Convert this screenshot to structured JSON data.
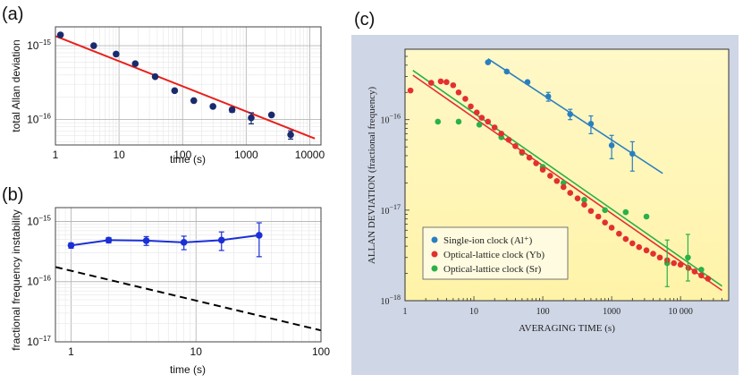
{
  "colors": {
    "fit_red": "#e8201c",
    "navy_point": "#1a2a6e",
    "blue_series": "#1b2fd6",
    "dashed": "#000000",
    "panel_c_bg": "#cfd6e6",
    "panel_c_plot_bg_top": "#fff8c8",
    "panel_c_plot_bg_bottom": "#fff3a8",
    "al_blue": "#2a7fc0",
    "yb_red": "#e23030",
    "sr_green": "#2bb04a"
  },
  "chart_data": [
    {
      "id": "a",
      "panel_label": "(a)",
      "type": "scatter",
      "xscale": "log",
      "yscale": "log",
      "xlim": [
        1,
        15000
      ],
      "ylim": [
        4.5e-17,
        1.8e-15
      ],
      "xlabel": "time (s)",
      "ylabel": "total Allan deviation",
      "xticks": [
        {
          "value": 1,
          "label": "1"
        },
        {
          "value": 10,
          "label": "10"
        },
        {
          "value": 100,
          "label": "100"
        },
        {
          "value": 1000,
          "label": "1000"
        },
        {
          "value": 10000,
          "label": "10000"
        }
      ],
      "yticks": [
        {
          "value": 1e-15,
          "base": "10",
          "exp": "−15"
        },
        {
          "value": 1e-16,
          "base": "10",
          "exp": "−16"
        }
      ],
      "grid": true,
      "series": [
        {
          "name": "data",
          "x": [
            1.2,
            4,
            9,
            18,
            37,
            75,
            150,
            300,
            600,
            1200,
            2500,
            5000
          ],
          "y": [
            1.4e-15,
            1e-15,
            7.7e-16,
            5.7e-16,
            3.8e-16,
            2.45e-16,
            1.8e-16,
            1.5e-16,
            1.35e-16,
            1.05e-16,
            1.15e-16,
            6.2e-17
          ],
          "err": [
            0,
            0,
            0,
            0,
            0,
            0,
            0,
            0,
            1e-17,
            1.8e-17,
            0,
            8e-18
          ]
        }
      ],
      "fit": {
        "x": [
          1,
          12000
        ],
        "y": [
          1.35e-15,
          5.5e-17
        ]
      }
    },
    {
      "id": "b",
      "panel_label": "(b)",
      "type": "line",
      "xscale": "log",
      "yscale": "log",
      "xlim": [
        0.75,
        100
      ],
      "ylim": [
        1e-17,
        1.7e-15
      ],
      "xlabel": "time (s)",
      "ylabel": "fractional frequency instability",
      "xticks": [
        {
          "value": 1,
          "label": "1"
        },
        {
          "value": 10,
          "label": "10"
        },
        {
          "value": 100,
          "label": "100"
        }
      ],
      "yticks": [
        {
          "value": 1e-15,
          "base": "10",
          "exp": "−15"
        },
        {
          "value": 1e-16,
          "base": "10",
          "exp": "−16"
        },
        {
          "value": 1e-17,
          "base": "10",
          "exp": "−17"
        }
      ],
      "grid": true,
      "series": [
        {
          "name": "measured",
          "x": [
            1,
            2,
            4,
            8,
            16,
            32
          ],
          "y": [
            4e-16,
            4.9e-16,
            4.8e-16,
            4.5e-16,
            4.9e-16,
            5.9e-16
          ],
          "err_low": [
            4e-17,
            5e-17,
            8e-17,
            1.1e-16,
            1.6e-16,
            3.3e-16
          ],
          "err_high": [
            4e-17,
            5e-17,
            8e-17,
            1.2e-16,
            1.8e-16,
            3.6e-16
          ]
        }
      ],
      "dashed": {
        "x": [
          0.75,
          100
        ],
        "y": [
          1.75e-16,
          1.55e-17
        ]
      }
    },
    {
      "id": "c",
      "panel_label": "(c)",
      "type": "scatter",
      "xscale": "log",
      "yscale": "log",
      "xlim": [
        1,
        50000
      ],
      "ylim": [
        1e-18,
        6e-16
      ],
      "xlabel": "AVERAGING TIME (s)",
      "ylabel": "ALLAN DEVIATION (fractional frequency)",
      "xticks": [
        {
          "value": 1,
          "label": "1"
        },
        {
          "value": 10,
          "label": "10"
        },
        {
          "value": 100,
          "label": "100"
        },
        {
          "value": 1000,
          "label": "1000"
        },
        {
          "value": 10000,
          "label": "10 000"
        }
      ],
      "yticks": [
        {
          "value": 1e-16,
          "base": "10",
          "exp": "−16"
        },
        {
          "value": 1e-17,
          "base": "10",
          "exp": "−17"
        },
        {
          "value": 1e-18,
          "base": "10",
          "exp": "−18"
        }
      ],
      "legend": [
        {
          "label": "Single-ion clock (Al⁺)",
          "color_key": "al_blue"
        },
        {
          "label": "Optical-lattice clock (Yb)",
          "color_key": "yb_red"
        },
        {
          "label": "Optical-lattice clock (Sr)",
          "color_key": "sr_green"
        }
      ],
      "legend_position": "bottom-left",
      "series": [
        {
          "name": "Single-ion clock (Al⁺)",
          "color_key": "al_blue",
          "x": [
            16,
            30,
            60,
            120,
            250,
            500,
            1000,
            2000
          ],
          "y": [
            4.3e-16,
            3.4e-16,
            2.6e-16,
            1.8e-16,
            1.15e-16,
            9e-17,
            5.2e-17,
            4.2e-17
          ],
          "err": [
            0,
            0,
            0,
            2e-17,
            1.5e-17,
            2e-17,
            1.5e-17,
            1.5e-17
          ],
          "fit": {
            "x": [
              16,
              5500
            ],
            "y": [
              4.7e-16,
              2.55e-17
            ]
          }
        },
        {
          "name": "Optical-lattice clock (Yb)",
          "color_key": "yb_red",
          "x": [
            1.2,
            2.4,
            3.3,
            4,
            5,
            6,
            7.5,
            9,
            11,
            13,
            16,
            20,
            25,
            32,
            40,
            50,
            64,
            80,
            100,
            128,
            160,
            200,
            250,
            320,
            400,
            500,
            640,
            800,
            1000,
            1280,
            1600,
            2000,
            2500,
            3200,
            4000,
            5000,
            6400,
            8000,
            10000,
            13000,
            16000,
            20000,
            25000
          ],
          "y": [
            2.1e-16,
            2.55e-16,
            2.65e-16,
            2.6e-16,
            2.4e-16,
            2e-16,
            1.7e-16,
            1.4e-16,
            1.2e-16,
            1.05e-16,
            9.5e-17,
            8.2e-17,
            7e-17,
            6e-17,
            5.1e-17,
            4.4e-17,
            3.8e-17,
            3.3e-17,
            2.8e-17,
            2.4e-17,
            2.1e-17,
            1.8e-17,
            1.55e-17,
            1.35e-17,
            1.15e-17,
            9.8e-18,
            8.5e-18,
            7.3e-18,
            6.4e-18,
            5.5e-18,
            4.8e-18,
            4.3e-18,
            3.9e-18,
            3.6e-18,
            3.3e-18,
            3e-18,
            2.8e-18,
            2.6e-18,
            2.5e-18,
            2.3e-18,
            2.1e-18,
            1.9e-18,
            1.75e-18
          ],
          "fit": {
            "x": [
              1.3,
              40000
            ],
            "y": [
              3.1e-16,
              1.3e-18
            ]
          }
        },
        {
          "name": "Optical-lattice clock (Sr)",
          "color_key": "sr_green",
          "x": [
            3,
            6,
            12,
            25,
            50,
            100,
            200,
            400,
            800,
            1600,
            3200,
            6400,
            12800,
            20000
          ],
          "y": [
            9.5e-17,
            9.5e-17,
            8.8e-17,
            6.4e-17,
            4.3e-17,
            3e-17,
            2e-17,
            1.3e-17,
            1e-17,
            9.5e-18,
            8.5e-18,
            2.6e-18,
            3e-18,
            2.2e-18
          ],
          "fit": {
            "x": [
              1.3,
              40000
            ],
            "y": [
              3.5e-16,
              1.45e-18
            ]
          }
        }
      ]
    }
  ]
}
